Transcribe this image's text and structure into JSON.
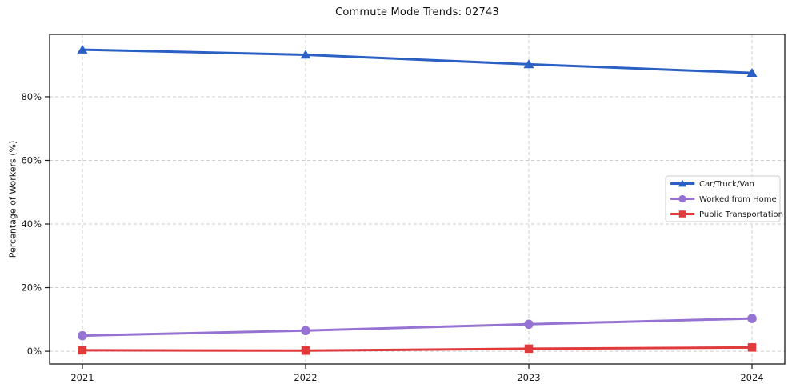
{
  "chart_data": {
    "type": "line",
    "title": "Commute Mode Trends: 02743",
    "xlabel": "",
    "ylabel": "Percentage of Workers (%)",
    "x": [
      "2021",
      "2022",
      "2023",
      "2024"
    ],
    "y_ticks": [
      0,
      20,
      40,
      60,
      80
    ],
    "y_tick_labels": [
      "0%",
      "20%",
      "40%",
      "60%",
      "80%"
    ],
    "ylim": [
      -4,
      99.6
    ],
    "grid": true,
    "grid_style": "dashed",
    "legend_position": "center-right",
    "colors": {
      "grid": "#cdcdcd",
      "spine": "#1a1a1a",
      "legend_border": "#cccccc",
      "legend_bg": "#ffffff",
      "text": "#1a1a1a"
    },
    "series": [
      {
        "name": "Car/Truck/Van",
        "color": "#2a5fc4",
        "marker": "triangle",
        "values": [
          94.8,
          93.2,
          90.2,
          87.5
        ]
      },
      {
        "name": "Worked from Home",
        "color": "#9673d2",
        "marker": "circle",
        "values": [
          4.9,
          6.5,
          8.5,
          10.3
        ]
      },
      {
        "name": "Public Transportation",
        "color": "#e03a3c",
        "marker": "square",
        "values": [
          0.3,
          0.2,
          0.8,
          1.2
        ]
      }
    ]
  }
}
